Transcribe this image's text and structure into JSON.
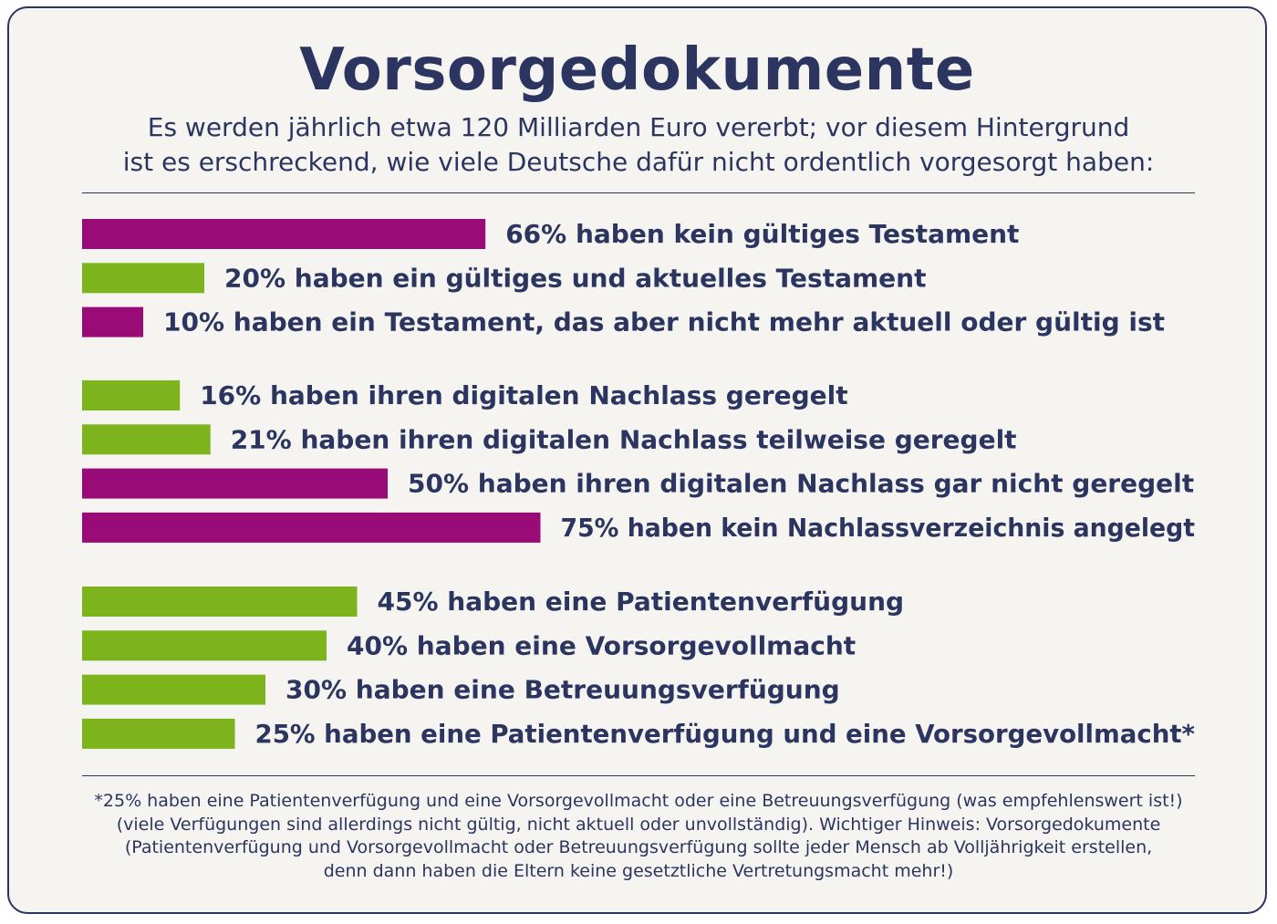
{
  "title": "Vorsorgedokumente",
  "subtitle": [
    "Es werden jährlich etwa 120 Milliarden Euro vererbt; vor diesem Hintergrund",
    "ist es erschreckend, wie viele Deutsche dafür nicht ordentlich vorgesorgt haben:"
  ],
  "colors": {
    "navy": "#2b3560",
    "purple": "#990c78",
    "green": "#7db31c",
    "background": "#f5f4f1"
  },
  "chart_data": {
    "type": "bar",
    "orientation": "horizontal",
    "xlim": [
      0,
      100
    ],
    "unit": "%",
    "groups": [
      {
        "bars": [
          {
            "value": 66,
            "color": "purple",
            "label": "66% haben kein gültiges Testament"
          },
          {
            "value": 20,
            "color": "green",
            "label": "20% haben ein gültiges und aktuelles Testament"
          },
          {
            "value": 10,
            "color": "purple",
            "label": "10% haben ein Testament, das aber nicht mehr aktuell oder gültig ist"
          }
        ]
      },
      {
        "bars": [
          {
            "value": 16,
            "color": "green",
            "label": "16% haben ihren digitalen Nachlass geregelt"
          },
          {
            "value": 21,
            "color": "green",
            "label": "21% haben ihren digitalen Nachlass teilweise geregelt"
          },
          {
            "value": 50,
            "color": "purple",
            "label": "50% haben ihren digitalen Nachlass gar nicht geregelt"
          },
          {
            "value": 75,
            "color": "purple",
            "label": "75% haben kein Nachlassverzeichnis angelegt"
          }
        ]
      },
      {
        "bars": [
          {
            "value": 45,
            "color": "green",
            "label": "45% haben eine Patientenverfügung"
          },
          {
            "value": 40,
            "color": "green",
            "label": "40% haben eine Vorsorgevollmacht"
          },
          {
            "value": 30,
            "color": "green",
            "label": "30% haben eine Betreuungsverfügung"
          },
          {
            "value": 25,
            "color": "green",
            "label": "25% haben eine Patientenverfügung und eine Vorsorgevollmacht*"
          }
        ]
      }
    ]
  },
  "footnote": [
    "*25% haben eine Patientenverfügung und eine Vorsorgevollmacht oder eine Betreuungsverfügung (was empfehlenswert ist!)",
    "(viele Verfügungen sind allerdings nicht gültig, nicht aktuell oder unvollständig). Wichtiger Hinweis: Vorsorgedokumente",
    "(Patientenverfügung und Vorsorgevollmacht oder Betreuungsverfügung sollte jeder Mensch ab Volljährigkeit erstellen,",
    "denn dann haben die Eltern keine gesetztliche Vertretungsmacht mehr!)"
  ]
}
